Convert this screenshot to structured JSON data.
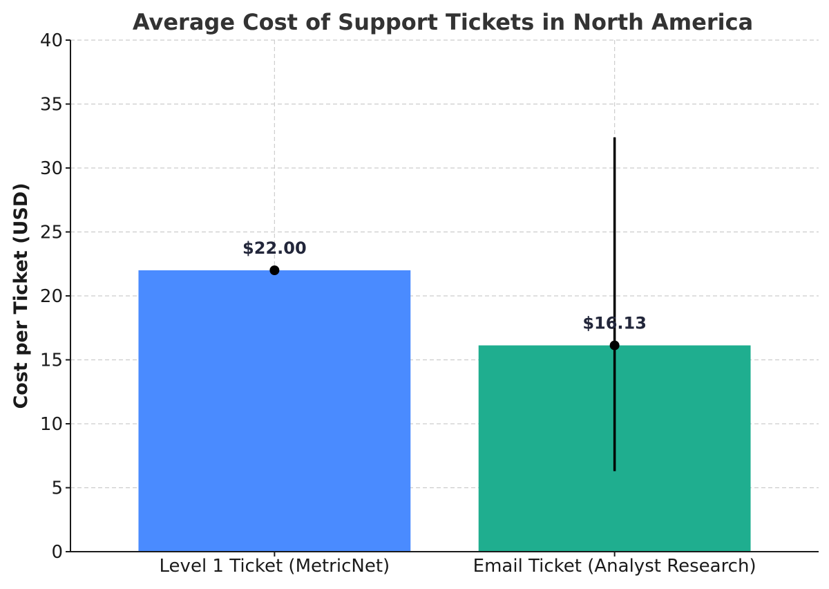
{
  "chart_data": {
    "type": "bar",
    "title": "Average Cost of Support Tickets in North America",
    "ylabel": "Cost per Ticket (USD)",
    "xlabel": "",
    "ylim": [
      0,
      40
    ],
    "yticks": [
      0,
      5,
      10,
      15,
      20,
      25,
      30,
      35,
      40
    ],
    "grid": true,
    "categories": [
      "Level 1 Ticket (MetricNet)",
      "Email Ticket (Analyst Research)"
    ],
    "values": [
      22.0,
      16.13
    ],
    "value_labels": [
      "$22.00",
      "$16.13"
    ],
    "error_ranges": [
      null,
      [
        6.3,
        32.4
      ]
    ],
    "colors": [
      "#4a8bff",
      "#1fae8f"
    ]
  }
}
